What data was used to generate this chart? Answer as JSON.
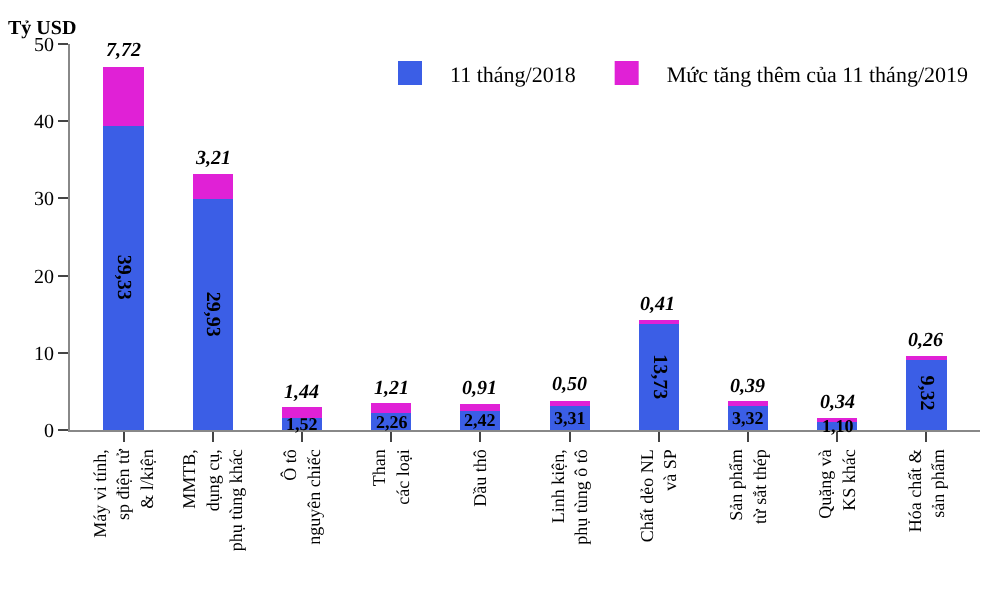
{
  "chart_data": {
    "type": "bar",
    "stacked": true,
    "ylabel": "Tỷ USD",
    "categories": [
      "Máy vi tính,\nsp điện tử\n& l/kiện",
      "MMTB,\ndụng cụ,\nphụ tùng khác",
      "Ô tô\nnguyên chiếc",
      "Than\ncác loại",
      "Dầu thô",
      "Linh kiện,\nphụ tùng ô tô",
      "Chất dẻo NL\nvà SP",
      "Sản phẩm\ntừ sắt thép",
      "Quặng và\nKS khác",
      "Hóa chất &\nsản phẩm"
    ],
    "series": [
      {
        "name": "11 tháng/2018",
        "color": "#3b5ee6",
        "values": [
          39.33,
          29.93,
          1.52,
          2.26,
          2.42,
          3.31,
          13.73,
          3.32,
          1.1,
          9.32
        ],
        "value_labels": [
          "39,33",
          "29,93",
          "1,52",
          "2,26",
          "2,42",
          "3,31",
          "13,73",
          "3,32",
          "1,10",
          "9,32"
        ]
      },
      {
        "name": "Mức tăng thêm của 11 tháng/2019",
        "color": "#e021d6",
        "values": [
          7.72,
          3.21,
          1.44,
          1.21,
          0.91,
          0.5,
          0.41,
          0.39,
          0.34,
          0.26
        ],
        "value_labels": [
          "7,72",
          "3,21",
          "1,44",
          "1,21",
          "0,91",
          "0,50",
          "0,41",
          "0,39",
          "0,34",
          "0,26"
        ]
      }
    ],
    "ylim": [
      0,
      50
    ],
    "yticks": [
      0,
      10,
      20,
      30,
      40,
      50
    ],
    "legend": "top right"
  }
}
